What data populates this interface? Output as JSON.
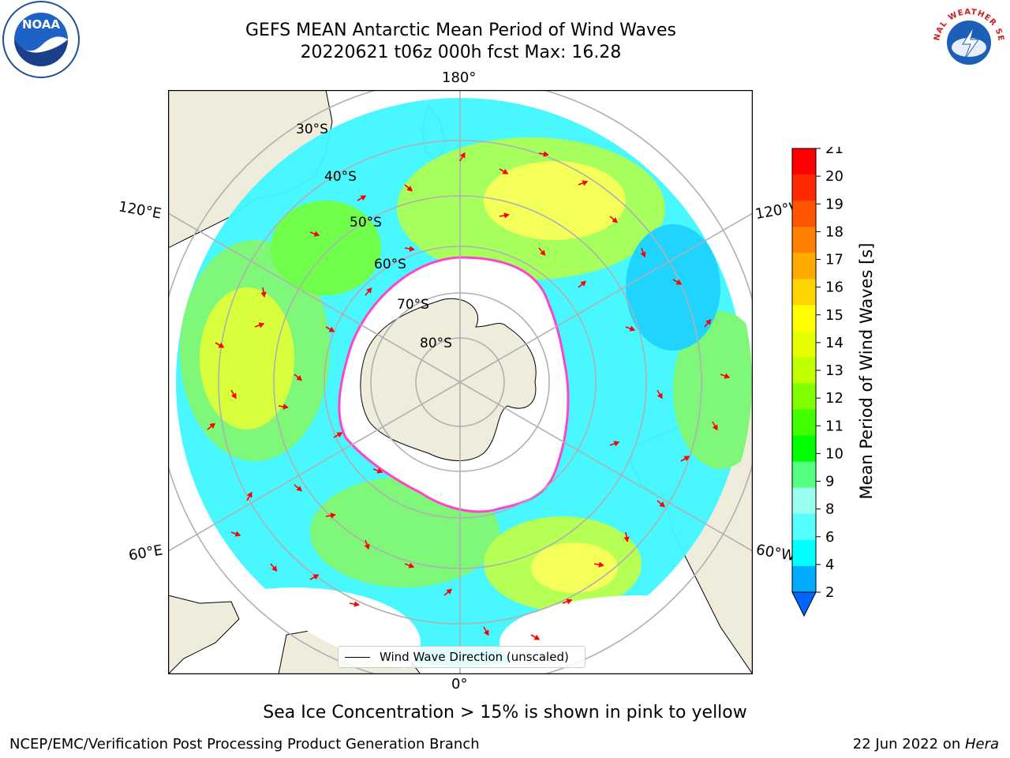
{
  "header": {
    "title_line1": "GEFS MEAN Antarctic Mean Period of Wind Waves",
    "title_line2": "20220621 t06z 000h fcst   Max: 16.28"
  },
  "map": {
    "projection": "south-polar-stereographic",
    "longitude_labels": {
      "top": "180°",
      "bottom": "0°",
      "left_upper": "120°E",
      "left_lower": "60°E",
      "right_upper": "120°W",
      "right_lower": "60°W"
    },
    "latitude_labels": [
      "30°S",
      "40°S",
      "50°S",
      "60°S",
      "70°S",
      "80°S"
    ],
    "legend": {
      "label": "Wind Wave Direction (unscaled)"
    },
    "colors": {
      "land": "#efecdc",
      "ocean_missing": "#ffffff",
      "grid": "#b0b0b0",
      "arrows": "#ff0000",
      "ice_edge": "#ff44cc"
    }
  },
  "colorbar": {
    "label": "Mean Period of Wind Waves [s]",
    "ticks": [
      "21",
      "20",
      "19",
      "18",
      "17",
      "16",
      "15",
      "14",
      "13",
      "12",
      "11",
      "10",
      "9",
      "8",
      "6",
      "4",
      "2"
    ],
    "colors": [
      "#ff0000",
      "#ff2a00",
      "#ff5500",
      "#ff8000",
      "#ffaa00",
      "#ffd400",
      "#ffff00",
      "#e6ff00",
      "#c0ff00",
      "#80ff00",
      "#40ff00",
      "#00ff00",
      "#55ff80",
      "#99ffee",
      "#55ffff",
      "#00ffff",
      "#00aaff",
      "#0066ff"
    ],
    "extend": "min"
  },
  "notes": {
    "sea_ice": "Sea Ice Concentration > 15% is shown in pink to yellow"
  },
  "footer": {
    "left": "NCEP/EMC/Verification Post Processing Product Generation Branch",
    "right_date": "22 Jun 2022 on ",
    "right_host": "Hera"
  },
  "logos": {
    "left": "NOAA",
    "right_text": "NATIONAL WEATHER SERVICE"
  }
}
